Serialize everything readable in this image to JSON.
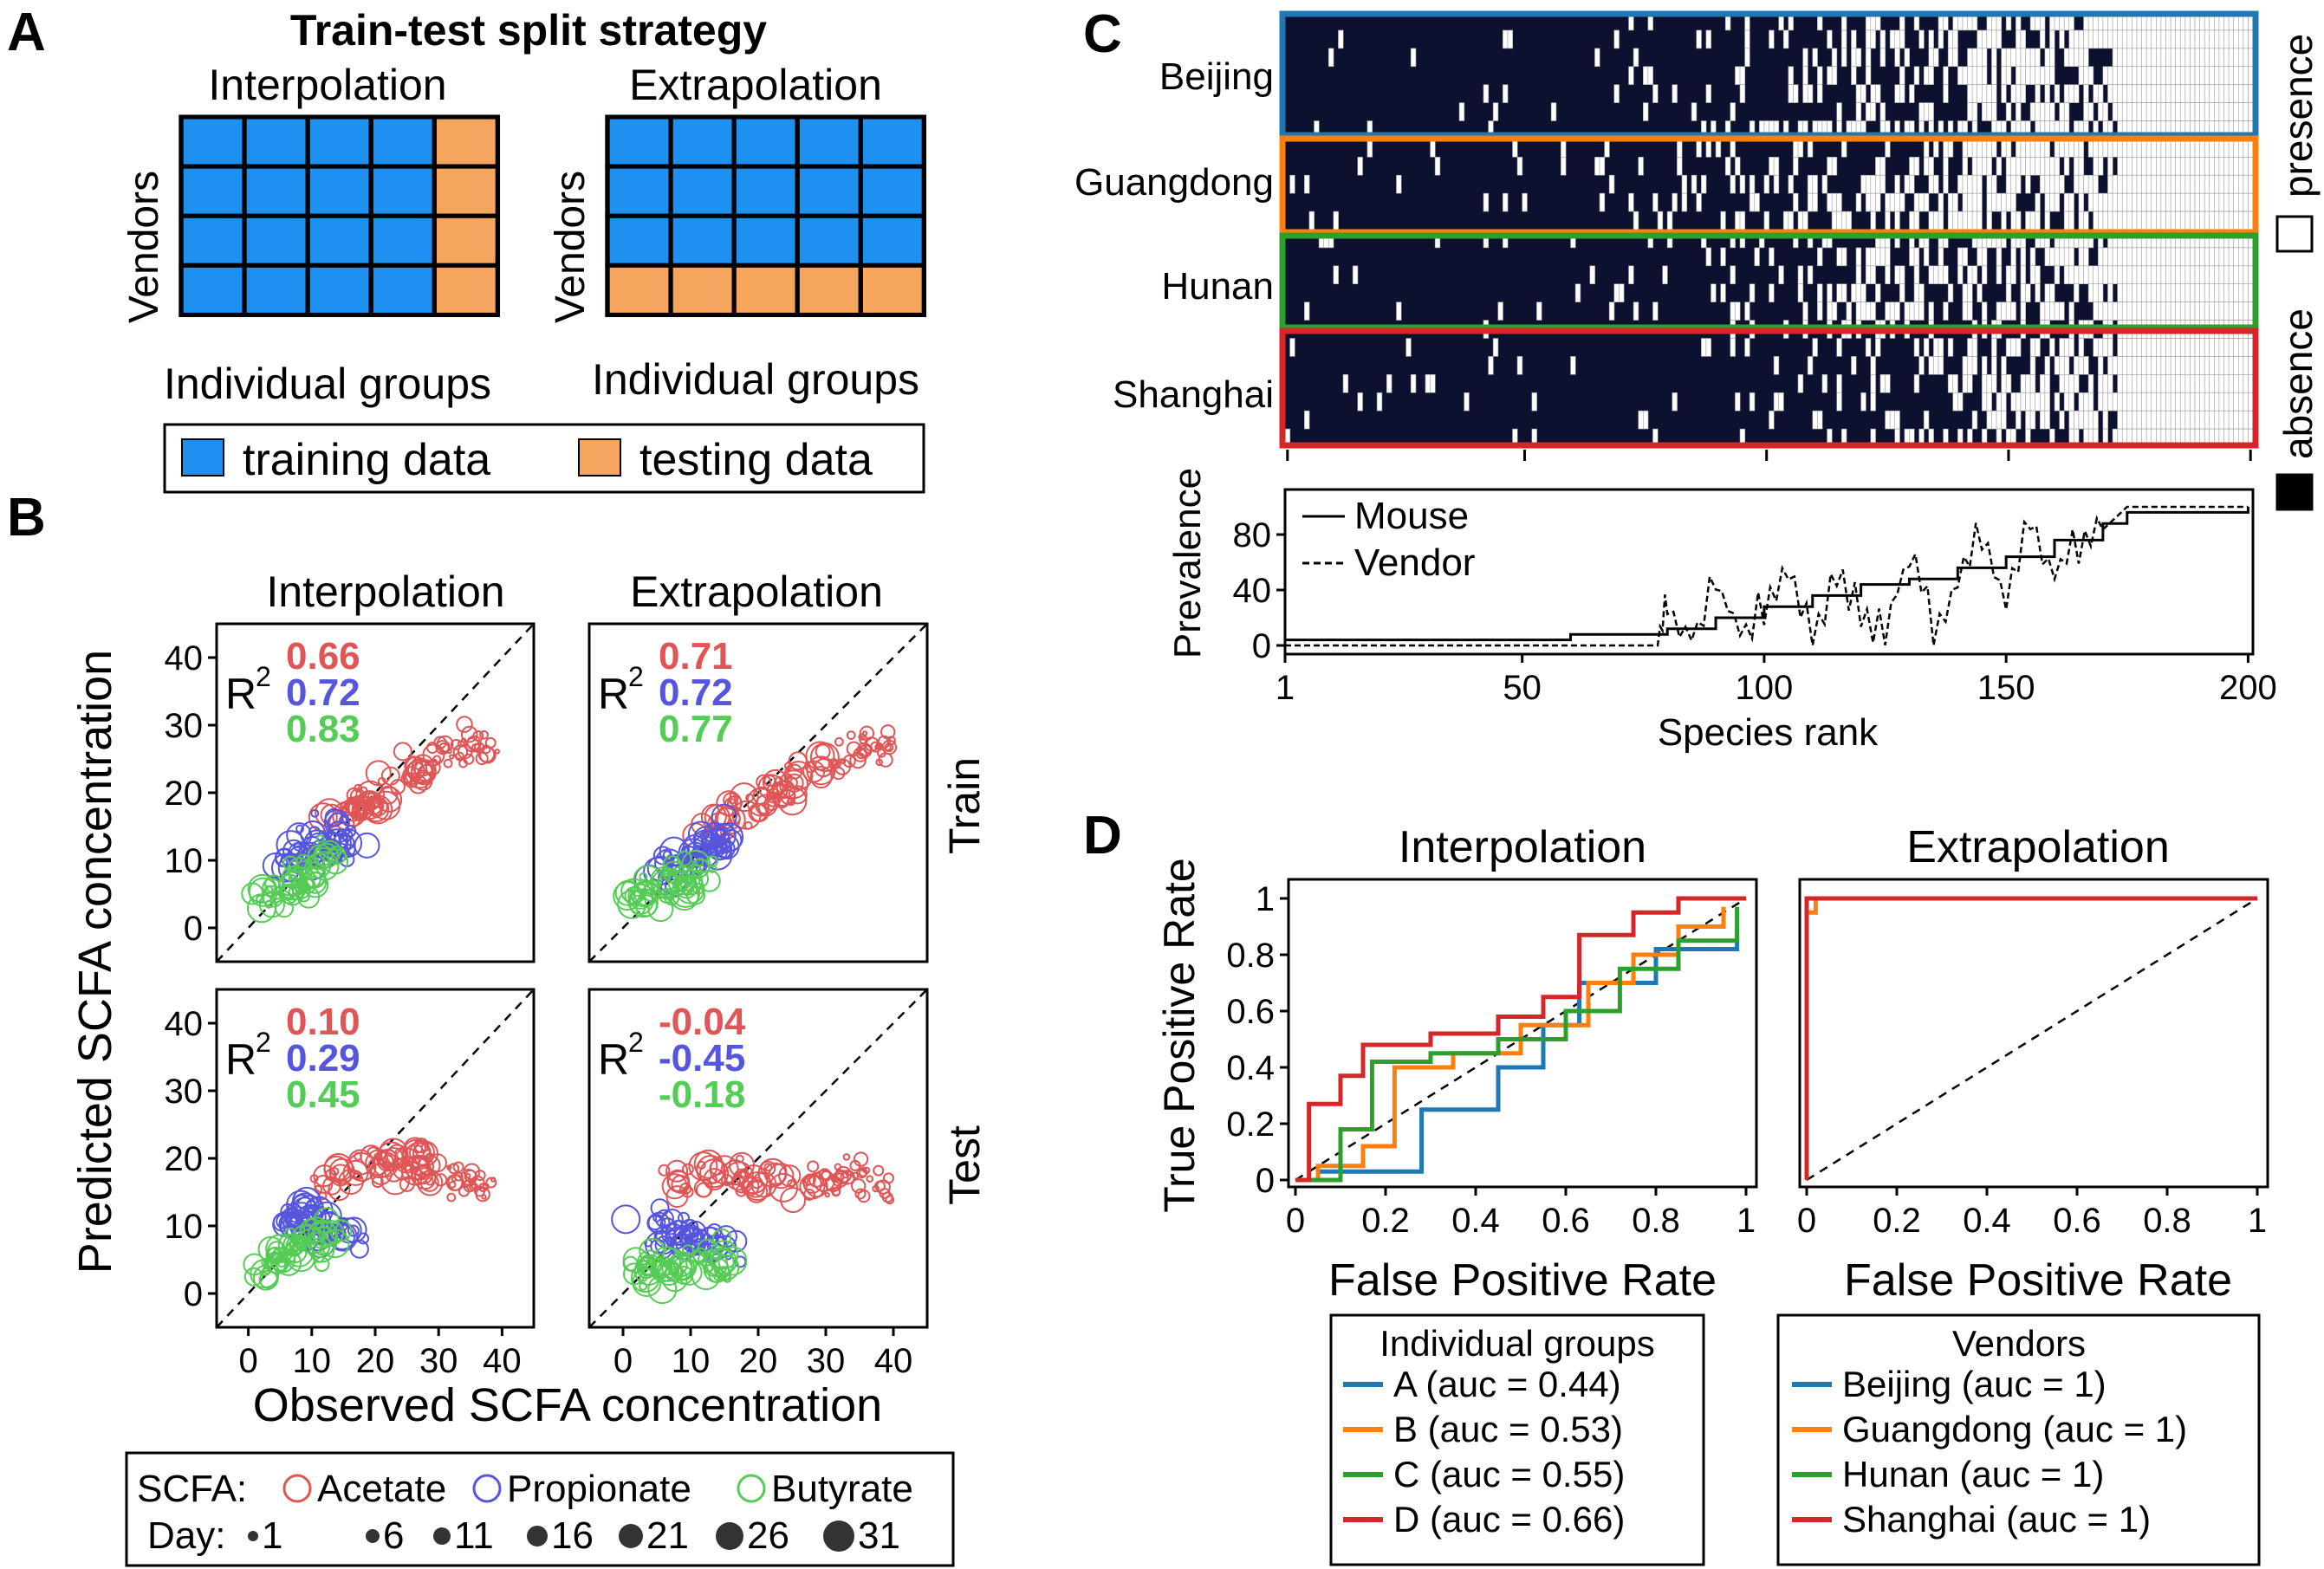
{
  "figure": {
    "panel_letters": [
      "A",
      "B",
      "C",
      "D"
    ],
    "colors": {
      "training": "#1e90f0",
      "testing": "#f5a55c",
      "acetate": "#e05555",
      "propionate": "#5555dd",
      "butyrate": "#55cc55",
      "heat_absence": "#0d1130",
      "heat_presence": "#ffffff",
      "beijing": "#1f77b4",
      "guangdong": "#ff7f0e",
      "hunan": "#2ca02c",
      "shanghai": "#d62728"
    }
  },
  "panelA": {
    "title": "Train-test split strategy",
    "interp_title": "Interpolation",
    "extrap_title": "Extrapolation",
    "y_label": "Vendors",
    "x_label": "Individual groups",
    "legend_train": "training data",
    "legend_test": "testing data"
  },
  "panelB": {
    "col_titles": [
      "Interpolation",
      "Extrapolation"
    ],
    "row_labels": [
      "Train",
      "Test"
    ],
    "r2_label": "R",
    "r2_sup": "2",
    "xlabel": "Observed SCFA concentration",
    "ylabel": "Predicted SCFA concentration",
    "legend_scfa_label": "SCFA:",
    "legend_day_label": "Day:",
    "scfa_names": [
      "Acetate",
      "Propionate",
      "Butyrate"
    ],
    "days": [
      "1",
      "6",
      "11",
      "16",
      "21",
      "26",
      "31"
    ]
  },
  "panelC": {
    "regions": [
      "Beijing",
      "Guangdong",
      "Hunan",
      "Shanghai"
    ],
    "heat_legend_presence": "presence",
    "heat_legend_absence": "absence",
    "prevalence_ylabel": "Prevalence",
    "xlabel": "Species rank",
    "line_legend": [
      "Mouse",
      "Vendor"
    ]
  },
  "panelD": {
    "ylabel": "True Positive Rate",
    "xlabel": "False Positive Rate",
    "titles": [
      "Interpolation",
      "Extrapolation"
    ],
    "legend_left_title": "Individual groups",
    "legend_left_items": [
      "A (auc = 0.44)",
      "B (auc = 0.53)",
      "C (auc = 0.55)",
      "D (auc = 0.66)"
    ],
    "legend_right_title": "Vendors",
    "legend_right_items": [
      "Beijing (auc = 1)",
      "Guangdong (auc = 1)",
      "Hunan (auc = 1)",
      "Shanghai (auc = 1)"
    ]
  },
  "chart_data": [
    {
      "type": "scatter",
      "title": "Interpolation",
      "row": "Train",
      "xlabel": "Observed SCFA concentration",
      "ylabel": "Predicted SCFA concentration",
      "xlim": [
        -5,
        45
      ],
      "ylim": [
        -5,
        45
      ],
      "xticks": [
        0,
        10,
        20,
        30,
        40
      ],
      "yticks": [
        0,
        10,
        20,
        30,
        40
      ],
      "r2": {
        "Acetate": "0.66",
        "Propionate": "0.72",
        "Butyrate": "0.83"
      },
      "series": [
        {
          "name": "Acetate",
          "x": [
            12,
            15,
            18,
            20,
            22,
            25,
            28,
            32,
            36,
            38
          ],
          "y": [
            16,
            18,
            18,
            19,
            21,
            22,
            24,
            26,
            27,
            28
          ]
        },
        {
          "name": "Propionate",
          "x": [
            6,
            8,
            10,
            12,
            14,
            16
          ],
          "y": [
            9,
            11,
            12,
            12,
            13,
            14
          ]
        },
        {
          "name": "Butyrate",
          "x": [
            2,
            4,
            6,
            8,
            10,
            13
          ],
          "y": [
            4,
            5,
            6,
            7,
            9,
            11
          ]
        }
      ]
    },
    {
      "type": "scatter",
      "title": "Extrapolation",
      "row": "Train",
      "xlabel": "Observed SCFA concentration",
      "ylabel": "Predicted SCFA concentration",
      "xlim": [
        -5,
        45
      ],
      "ylim": [
        -5,
        45
      ],
      "xticks": [
        0,
        10,
        20,
        30,
        40
      ],
      "yticks": [
        0,
        10,
        20,
        30,
        40
      ],
      "r2": {
        "Acetate": "0.71",
        "Propionate": "0.72",
        "Butyrate": "0.77"
      },
      "series": [
        {
          "name": "Acetate",
          "x": [
            12,
            15,
            18,
            21,
            24,
            27,
            30,
            34,
            37,
            39
          ],
          "y": [
            14,
            16,
            18,
            19,
            21,
            23,
            24,
            26,
            27,
            27
          ]
        },
        {
          "name": "Propionate",
          "x": [
            6,
            8,
            10,
            12,
            14,
            16
          ],
          "y": [
            8,
            10,
            11,
            12,
            13,
            13
          ]
        },
        {
          "name": "Butyrate",
          "x": [
            2,
            4,
            6,
            8,
            10,
            12
          ],
          "y": [
            4,
            5,
            5,
            6,
            7,
            8
          ]
        }
      ]
    },
    {
      "type": "scatter",
      "title": "Interpolation",
      "row": "Test",
      "xlabel": "Observed SCFA concentration",
      "ylabel": "Predicted SCFA concentration",
      "xlim": [
        -5,
        45
      ],
      "ylim": [
        -5,
        45
      ],
      "xticks": [
        0,
        10,
        20,
        30,
        40
      ],
      "yticks": [
        0,
        10,
        20,
        30,
        40
      ],
      "r2": {
        "Acetate": "0.10",
        "Propionate": "0.29",
        "Butyrate": "0.45"
      },
      "series": [
        {
          "name": "Acetate",
          "x": [
            10,
            14,
            18,
            22,
            26,
            30,
            34,
            38
          ],
          "y": [
            15,
            17,
            18,
            19,
            20,
            18,
            17,
            16
          ]
        },
        {
          "name": "Propionate",
          "x": [
            6,
            8,
            10,
            12,
            14,
            17
          ],
          "y": [
            10,
            12,
            11,
            10,
            9,
            8
          ]
        },
        {
          "name": "Butyrate",
          "x": [
            2,
            4,
            6,
            8,
            10,
            14
          ],
          "y": [
            4,
            5,
            6,
            7,
            8,
            9
          ]
        }
      ]
    },
    {
      "type": "scatter",
      "title": "Extrapolation",
      "row": "Test",
      "xlabel": "Observed SCFA concentration",
      "ylabel": "Predicted SCFA concentration",
      "xlim": [
        -5,
        45
      ],
      "ylim": [
        -5,
        45
      ],
      "xticks": [
        0,
        10,
        20,
        30,
        40
      ],
      "yticks": [
        0,
        10,
        20,
        30,
        40
      ],
      "r2": {
        "Acetate": "-0.04",
        "Propionate": "-0.45",
        "Butyrate": "-0.18"
      },
      "series": [
        {
          "name": "Acetate",
          "x": [
            8,
            12,
            16,
            20,
            24,
            28,
            32,
            36,
            39
          ],
          "y": [
            15,
            17,
            18,
            17,
            16,
            16,
            17,
            17,
            16
          ]
        },
        {
          "name": "Propionate",
          "x": [
            4,
            6,
            8,
            10,
            12,
            14,
            16
          ],
          "y": [
            10,
            9,
            9,
            8,
            8,
            7,
            6
          ]
        },
        {
          "name": "Butyrate",
          "x": [
            2,
            4,
            6,
            8,
            10,
            13,
            16
          ],
          "y": [
            4,
            4,
            4,
            4,
            4,
            4,
            4
          ]
        }
      ]
    },
    {
      "type": "heatmap",
      "xlabel": "Species rank",
      "rows_per_region": 6,
      "regions": [
        "Beijing",
        "Guangdong",
        "Hunan",
        "Shanghai"
      ],
      "columns": 200,
      "values": "presence/absence"
    },
    {
      "type": "line",
      "xlabel": "Species rank",
      "ylabel": "Prevalence",
      "xlim": [
        0,
        205
      ],
      "ylim": [
        0,
        100
      ],
      "xticks": [
        1,
        50,
        100,
        150,
        200
      ],
      "yticks": [
        0,
        40,
        80
      ],
      "series": [
        {
          "name": "Mouse",
          "x": [
            1,
            40,
            60,
            80,
            90,
            100,
            110,
            120,
            130,
            140,
            150,
            160,
            170,
            175,
            200
          ],
          "y": [
            4,
            4,
            8,
            12,
            20,
            28,
            36,
            44,
            48,
            56,
            64,
            76,
            88,
            96,
            100
          ]
        },
        {
          "name": "Vendor",
          "x": [
            1,
            78,
            80,
            85,
            90,
            95,
            100,
            105,
            110,
            115,
            120,
            125,
            130,
            135,
            140,
            145,
            150,
            155,
            160,
            165,
            170,
            175,
            200
          ],
          "y": [
            0,
            0,
            25,
            5,
            45,
            10,
            25,
            50,
            5,
            55,
            20,
            5,
            70,
            10,
            45,
            80,
            35,
            85,
            55,
            70,
            88,
            100,
            100
          ]
        }
      ]
    },
    {
      "type": "line",
      "title": "Interpolation",
      "xlabel": "False Positive Rate",
      "ylabel": "True Positive Rate",
      "xlim": [
        0,
        1
      ],
      "ylim": [
        0,
        1
      ],
      "xticks": [
        0,
        0.2,
        0.4,
        0.6,
        0.8,
        1
      ],
      "yticks": [
        0,
        0.2,
        0.4,
        0.6,
        0.8,
        1
      ],
      "series": [
        {
          "name": "A (auc = 0.44)",
          "x": [
            0,
            0.05,
            0.05,
            0.28,
            0.28,
            0.45,
            0.45,
            0.55,
            0.55,
            0.63,
            0.63,
            0.8,
            0.8,
            0.98,
            0.98
          ],
          "y": [
            0,
            0,
            0.03,
            0.03,
            0.25,
            0.25,
            0.4,
            0.4,
            0.55,
            0.55,
            0.7,
            0.7,
            0.82,
            0.82,
            0.88
          ]
        },
        {
          "name": "B (auc = 0.53)",
          "x": [
            0,
            0.05,
            0.05,
            0.15,
            0.15,
            0.22,
            0.22,
            0.35,
            0.35,
            0.5,
            0.5,
            0.65,
            0.65,
            0.75,
            0.75,
            0.85,
            0.85,
            0.95,
            0.95
          ],
          "y": [
            0,
            0,
            0.05,
            0.05,
            0.12,
            0.12,
            0.4,
            0.4,
            0.45,
            0.45,
            0.55,
            0.55,
            0.7,
            0.7,
            0.8,
            0.8,
            0.9,
            0.9,
            0.97
          ]
        },
        {
          "name": "C (auc = 0.55)",
          "x": [
            0,
            0.1,
            0.1,
            0.17,
            0.17,
            0.3,
            0.3,
            0.45,
            0.45,
            0.6,
            0.6,
            0.72,
            0.72,
            0.85,
            0.85,
            0.98,
            0.98
          ],
          "y": [
            0,
            0,
            0.18,
            0.18,
            0.42,
            0.42,
            0.45,
            0.45,
            0.5,
            0.5,
            0.6,
            0.6,
            0.75,
            0.75,
            0.85,
            0.85,
            0.97
          ]
        },
        {
          "name": "D (auc = 0.66)",
          "x": [
            0,
            0.03,
            0.03,
            0.1,
            0.1,
            0.15,
            0.15,
            0.3,
            0.3,
            0.45,
            0.45,
            0.55,
            0.55,
            0.63,
            0.63,
            0.75,
            0.75,
            0.85,
            0.85,
            1
          ],
          "y": [
            0,
            0,
            0.27,
            0.27,
            0.37,
            0.37,
            0.48,
            0.48,
            0.52,
            0.52,
            0.58,
            0.58,
            0.65,
            0.65,
            0.87,
            0.87,
            0.95,
            0.95,
            1,
            1
          ]
        }
      ]
    },
    {
      "type": "line",
      "title": "Extrapolation",
      "xlabel": "False Positive Rate",
      "ylabel": "True Positive Rate",
      "xlim": [
        0,
        1
      ],
      "ylim": [
        0,
        1
      ],
      "xticks": [
        0,
        0.2,
        0.4,
        0.6,
        0.8,
        1
      ],
      "yticks": [
        0,
        0.2,
        0.4,
        0.6,
        0.8,
        1
      ],
      "series": [
        {
          "name": "Beijing (auc = 1)",
          "x": [
            0,
            0,
            1
          ],
          "y": [
            0,
            1,
            1
          ]
        },
        {
          "name": "Guangdong (auc = 1)",
          "x": [
            0,
            0,
            0.02,
            0.02,
            1
          ],
          "y": [
            0,
            0.95,
            0.95,
            1,
            1
          ]
        },
        {
          "name": "Hunan (auc = 1)",
          "x": [
            0,
            0,
            1
          ],
          "y": [
            0,
            1,
            1
          ]
        },
        {
          "name": "Shanghai (auc = 1)",
          "x": [
            0,
            0,
            1
          ],
          "y": [
            0,
            1,
            1
          ]
        }
      ]
    }
  ]
}
